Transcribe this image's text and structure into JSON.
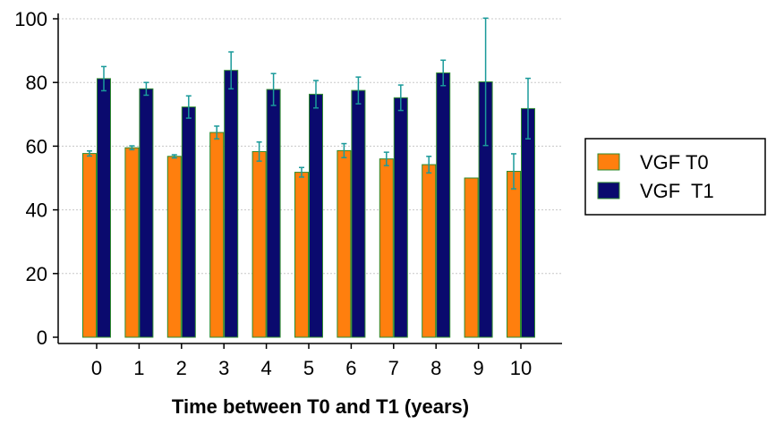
{
  "chart_data": {
    "type": "bar",
    "title": "",
    "xlabel": "Time between T0 and T1 (years)",
    "ylabel": "",
    "categories": [
      "0",
      "1",
      "2",
      "3",
      "4",
      "5",
      "6",
      "7",
      "8",
      "9",
      "10"
    ],
    "ylim": [
      0,
      100
    ],
    "yticks": [
      0,
      20,
      40,
      60,
      80,
      100
    ],
    "grid": "horizontal dotted",
    "legend_position": "right",
    "series": [
      {
        "name": "VGF T0",
        "color": "#ff7f0e",
        "edge_color": "#2e8b2e",
        "values": [
          57.7,
          59.5,
          56.8,
          64.3,
          58.3,
          51.8,
          58.6,
          56.0,
          54.2,
          50.0,
          52.1
        ],
        "errors": [
          0.8,
          0.6,
          0.5,
          2.0,
          3.0,
          1.5,
          2.2,
          2.1,
          2.6,
          0,
          5.5
        ]
      },
      {
        "name": "VGF  T1",
        "color": "#0a0a6e",
        "edge_color": "#2e8b2e",
        "values": [
          81.2,
          78.0,
          72.3,
          83.8,
          77.8,
          76.3,
          77.5,
          75.2,
          83.0,
          80.2,
          71.8
        ],
        "errors": [
          3.8,
          2.0,
          3.5,
          5.8,
          5.0,
          4.3,
          4.2,
          4.0,
          4.0,
          20.0,
          9.5
        ]
      }
    ]
  }
}
